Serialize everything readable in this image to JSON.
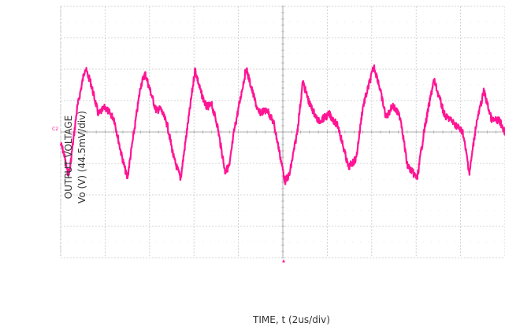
{
  "chart_data": {
    "type": "line",
    "title": "",
    "ylabel_line1": "OUTPUT VOLTAGE",
    "ylabel_line2": "Vo (V) (44.5mV/div)",
    "xlabel": "TIME, t (2us/div)",
    "channel_marker": "C2",
    "x_unit": "us",
    "y_unit": "mV",
    "xlim": [
      0,
      20
    ],
    "ylim": [
      -178,
      178
    ],
    "grid": true,
    "trace_color": "#ff1493",
    "series": [
      {
        "x": [
          0,
          0.15,
          0.3,
          0.4,
          0.75,
          1.1,
          1.35,
          1.7,
          2.0,
          2.4,
          2.75,
          3.0,
          3.3,
          3.6,
          3.8,
          4.3,
          4.5,
          4.8,
          5.1,
          5.4,
          5.8,
          6.05,
          6.3,
          6.55,
          6.8,
          7.05,
          7.4,
          7.6,
          7.8,
          8.35,
          8.6,
          8.9,
          9.3,
          9.6,
          10.1,
          10.3,
          10.65,
          10.9,
          11.2,
          11.6,
          12.1,
          12.5,
          12.95,
          13.3,
          13.6,
          14.1,
          14.3,
          14.65,
          14.95,
          15.3,
          15.6,
          16.05,
          16.35,
          16.8,
          17.3,
          17.5,
          18.1,
          18.4,
          18.7,
          19.05,
          19.4,
          19.75,
          20.0
        ],
        "y": [
          -17,
          -30,
          -57,
          -56,
          35,
          91,
          70,
          25,
          35,
          19,
          -34,
          -66,
          0,
          65,
          83,
          30,
          33,
          10,
          -38,
          -66,
          29,
          89,
          57,
          36,
          38,
          10,
          -56,
          -48,
          0,
          90,
          61,
          27,
          31,
          12,
          -70,
          -60,
          0,
          71,
          40,
          15,
          25,
          7,
          -50,
          -38,
          35,
          93,
          71,
          20,
          38,
          20,
          -47,
          -66,
          0,
          74,
          22,
          19,
          0,
          -58,
          10,
          58,
          17,
          16,
          0
        ]
      }
    ]
  }
}
